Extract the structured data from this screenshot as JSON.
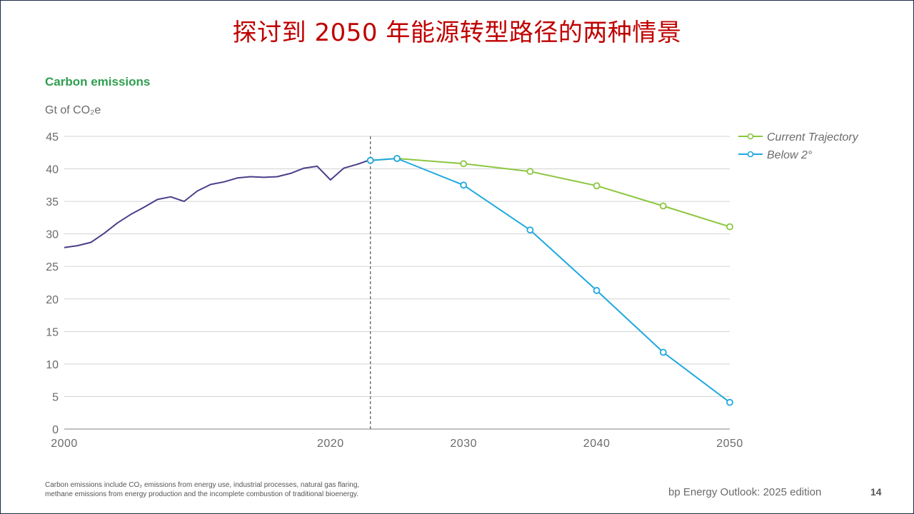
{
  "slide": {
    "title": "探讨到 2050 年能源转型路径的两种情景",
    "footnote_line1": "Carbon emissions include CO₂ emissions from energy use, industrial processes, natural gas flaring,",
    "footnote_line2": "methane emissions from energy production and the incomplete combustion of traditional bioenergy.",
    "source": "bp Energy Outlook: 2025 edition",
    "page_number": "14",
    "frame_color": "#1f2d4a",
    "title_color": "#c00000"
  },
  "chart_data": {
    "type": "line",
    "title": "Carbon emissions",
    "ylabel": "Gt of CO₂e",
    "xlabel": "",
    "xlim": [
      2000,
      2050
    ],
    "ylim": [
      0,
      45
    ],
    "x_ticks": [
      2000,
      2020,
      2030,
      2040,
      2050
    ],
    "y_ticks": [
      0,
      5,
      10,
      15,
      20,
      25,
      30,
      35,
      40,
      45
    ],
    "grid": true,
    "legend_position": "top-right",
    "reference_line_year": 2023,
    "series": [
      {
        "name": "",
        "color": "#4a3f8a",
        "markers": false,
        "points": [
          [
            2000,
            27.9
          ],
          [
            2001,
            28.2
          ],
          [
            2002,
            28.7
          ],
          [
            2003,
            30.1
          ],
          [
            2004,
            31.7
          ],
          [
            2005,
            33.0
          ],
          [
            2006,
            34.1
          ],
          [
            2007,
            35.3
          ],
          [
            2008,
            35.7
          ],
          [
            2009,
            35.0
          ],
          [
            2010,
            36.6
          ],
          [
            2011,
            37.6
          ],
          [
            2012,
            38.0
          ],
          [
            2013,
            38.6
          ],
          [
            2014,
            38.8
          ],
          [
            2015,
            38.7
          ],
          [
            2016,
            38.8
          ],
          [
            2017,
            39.3
          ],
          [
            2018,
            40.1
          ],
          [
            2019,
            40.4
          ],
          [
            2020,
            38.3
          ],
          [
            2021,
            40.1
          ],
          [
            2022,
            40.7
          ],
          [
            2023,
            41.4
          ]
        ]
      },
      {
        "name": "Current Trajectory",
        "color": "#8cc63f",
        "markers": true,
        "points": [
          [
            2023,
            41.3
          ],
          [
            2025,
            41.6
          ],
          [
            2030,
            40.8
          ],
          [
            2035,
            39.6
          ],
          [
            2040,
            37.4
          ],
          [
            2045,
            34.3
          ],
          [
            2050,
            31.1
          ]
        ]
      },
      {
        "name": "Below 2°",
        "color": "#1ea8e0",
        "markers": true,
        "points": [
          [
            2023,
            41.3
          ],
          [
            2025,
            41.6
          ],
          [
            2030,
            37.5
          ],
          [
            2035,
            30.6
          ],
          [
            2040,
            21.3
          ],
          [
            2045,
            11.8
          ],
          [
            2050,
            4.1
          ]
        ]
      }
    ]
  }
}
